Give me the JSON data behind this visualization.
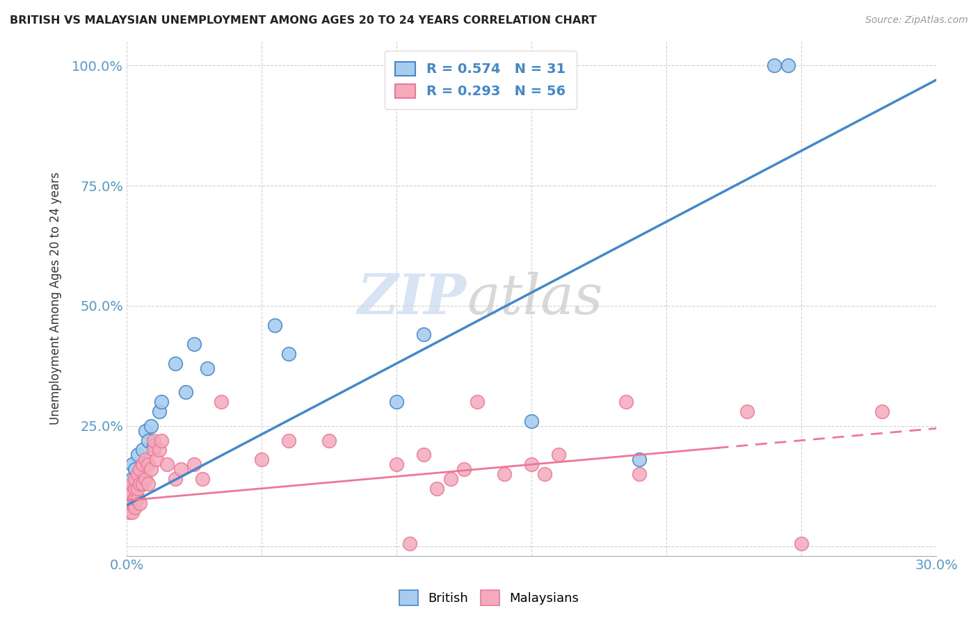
{
  "title": "BRITISH VS MALAYSIAN UNEMPLOYMENT AMONG AGES 20 TO 24 YEARS CORRELATION CHART",
  "source": "Source: ZipAtlas.com",
  "ylabel": "Unemployment Among Ages 20 to 24 years",
  "xlim": [
    0.0,
    0.3
  ],
  "ylim": [
    -0.02,
    1.05
  ],
  "xticks": [
    0.0,
    0.05,
    0.1,
    0.15,
    0.2,
    0.25,
    0.3
  ],
  "xtick_labels": [
    "0.0%",
    "",
    "",
    "",
    "",
    "",
    "30.0%"
  ],
  "yticks": [
    0.0,
    0.25,
    0.5,
    0.75,
    1.0
  ],
  "ytick_labels": [
    "",
    "25.0%",
    "50.0%",
    "75.0%",
    "100.0%"
  ],
  "british_R": 0.574,
  "british_N": 31,
  "malaysian_R": 0.293,
  "malaysian_N": 56,
  "british_color": "#A8CCEE",
  "malaysian_color": "#F4AABB",
  "british_line_color": "#4488CC",
  "malaysian_line_color": "#EE7799",
  "watermark_zip": "ZIP",
  "watermark_atlas": "atlas",
  "british_line_intercept": 0.085,
  "british_line_slope": 2.95,
  "malaysian_line_intercept": 0.095,
  "malaysian_line_slope": 0.5,
  "british_x": [
    0.001,
    0.001,
    0.001,
    0.002,
    0.002,
    0.002,
    0.002,
    0.003,
    0.003,
    0.003,
    0.004,
    0.005,
    0.006,
    0.007,
    0.008,
    0.009,
    0.01,
    0.012,
    0.013,
    0.018,
    0.022,
    0.025,
    0.03,
    0.055,
    0.06,
    0.1,
    0.11,
    0.15,
    0.19,
    0.24,
    0.245
  ],
  "british_y": [
    0.08,
    0.09,
    0.11,
    0.1,
    0.12,
    0.14,
    0.17,
    0.1,
    0.13,
    0.16,
    0.19,
    0.14,
    0.2,
    0.24,
    0.22,
    0.25,
    0.21,
    0.28,
    0.3,
    0.38,
    0.32,
    0.42,
    0.37,
    0.46,
    0.4,
    0.3,
    0.44,
    0.26,
    0.18,
    1.0,
    1.0
  ],
  "malaysian_x": [
    0.001,
    0.001,
    0.001,
    0.001,
    0.001,
    0.002,
    0.002,
    0.002,
    0.002,
    0.003,
    0.003,
    0.003,
    0.003,
    0.004,
    0.004,
    0.004,
    0.005,
    0.005,
    0.005,
    0.006,
    0.006,
    0.007,
    0.007,
    0.008,
    0.008,
    0.009,
    0.01,
    0.01,
    0.011,
    0.012,
    0.013,
    0.015,
    0.018,
    0.02,
    0.025,
    0.028,
    0.035,
    0.05,
    0.06,
    0.075,
    0.1,
    0.105,
    0.11,
    0.115,
    0.12,
    0.125,
    0.13,
    0.14,
    0.15,
    0.155,
    0.16,
    0.185,
    0.19,
    0.23,
    0.25,
    0.28
  ],
  "malaysian_y": [
    0.07,
    0.08,
    0.09,
    0.1,
    0.12,
    0.07,
    0.09,
    0.11,
    0.13,
    0.08,
    0.1,
    0.12,
    0.14,
    0.1,
    0.12,
    0.15,
    0.09,
    0.13,
    0.16,
    0.13,
    0.17,
    0.14,
    0.18,
    0.13,
    0.17,
    0.16,
    0.2,
    0.22,
    0.18,
    0.2,
    0.22,
    0.17,
    0.14,
    0.16,
    0.17,
    0.14,
    0.3,
    0.18,
    0.22,
    0.22,
    0.17,
    0.005,
    0.19,
    0.12,
    0.14,
    0.16,
    0.3,
    0.15,
    0.17,
    0.15,
    0.19,
    0.3,
    0.15,
    0.28,
    0.005,
    0.28
  ]
}
